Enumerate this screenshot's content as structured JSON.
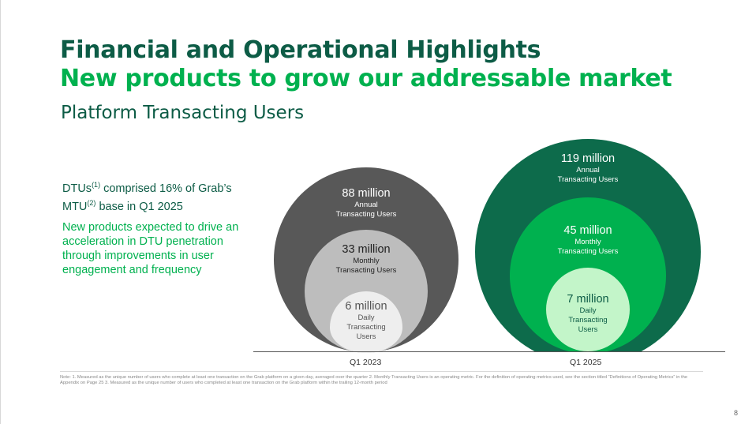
{
  "header": {
    "title_line1": "Financial and Operational Highlights",
    "title_line2": "New products to grow our addressable market",
    "section_title": "Platform Transacting Users"
  },
  "left_text": {
    "p1_a": "DTUs",
    "p1_sup1": "(1)",
    "p1_b": " comprised 16% of Grab’s MTU",
    "p1_sup2": "(2)",
    "p1_c": " base in Q1 2025",
    "p2": "New products expected to drive an acceleration in DTU penetration through improvements in user engagement and frequency"
  },
  "chart_data": {
    "type": "nested-circles",
    "categories": [
      "Q1 2023",
      "Q1 2025"
    ],
    "groups": [
      {
        "period": "Q1 2023",
        "annual": {
          "value_label": "88 million",
          "label_line1": "Annual",
          "label_line2": "Transacting Users",
          "value": 88
        },
        "monthly": {
          "value_label": "33 million",
          "label_line1": "Monthly",
          "label_line2": "Transacting Users",
          "value": 33
        },
        "daily": {
          "value_label": "6 million",
          "label_line1": "Daily",
          "label_line2": "Transacting",
          "label_line3": "Users",
          "value": 6
        }
      },
      {
        "period": "Q1 2025",
        "annual": {
          "value_label": "119 million",
          "label_line1": "Annual",
          "label_line2": "Transacting Users",
          "value": 119
        },
        "monthly": {
          "value_label": "45 million",
          "label_line1": "Monthly",
          "label_line2": "Transacting Users",
          "value": 45
        },
        "daily": {
          "value_label": "7 million",
          "label_line1": "Daily",
          "label_line2": "Transacting",
          "label_line3": "Users",
          "value": 7
        }
      }
    ],
    "colors": {
      "q2023_outer": "#585858",
      "q2023_middle": "#bdbdbd",
      "q2023_inner": "#eeeeee",
      "q2025_outer": "#0d6b4b",
      "q2025_middle": "#00b14f",
      "q2025_inner": "#c3f5c9"
    }
  },
  "footnote": "Note: 1. Measured as the unique number of users who complete at least one transaction on the Grab platform on a given day, averaged over the quarter 2. Monthly Transacting Users is an operating metric. For the definition of operating metrics used, see the section titled “Definitions of Operating Metrics” in the Appendix on Page 25 3. Measured as the unique number of users who completed at least one transaction on the Grab platform within the trailing 12-month period",
  "page_number": "8"
}
